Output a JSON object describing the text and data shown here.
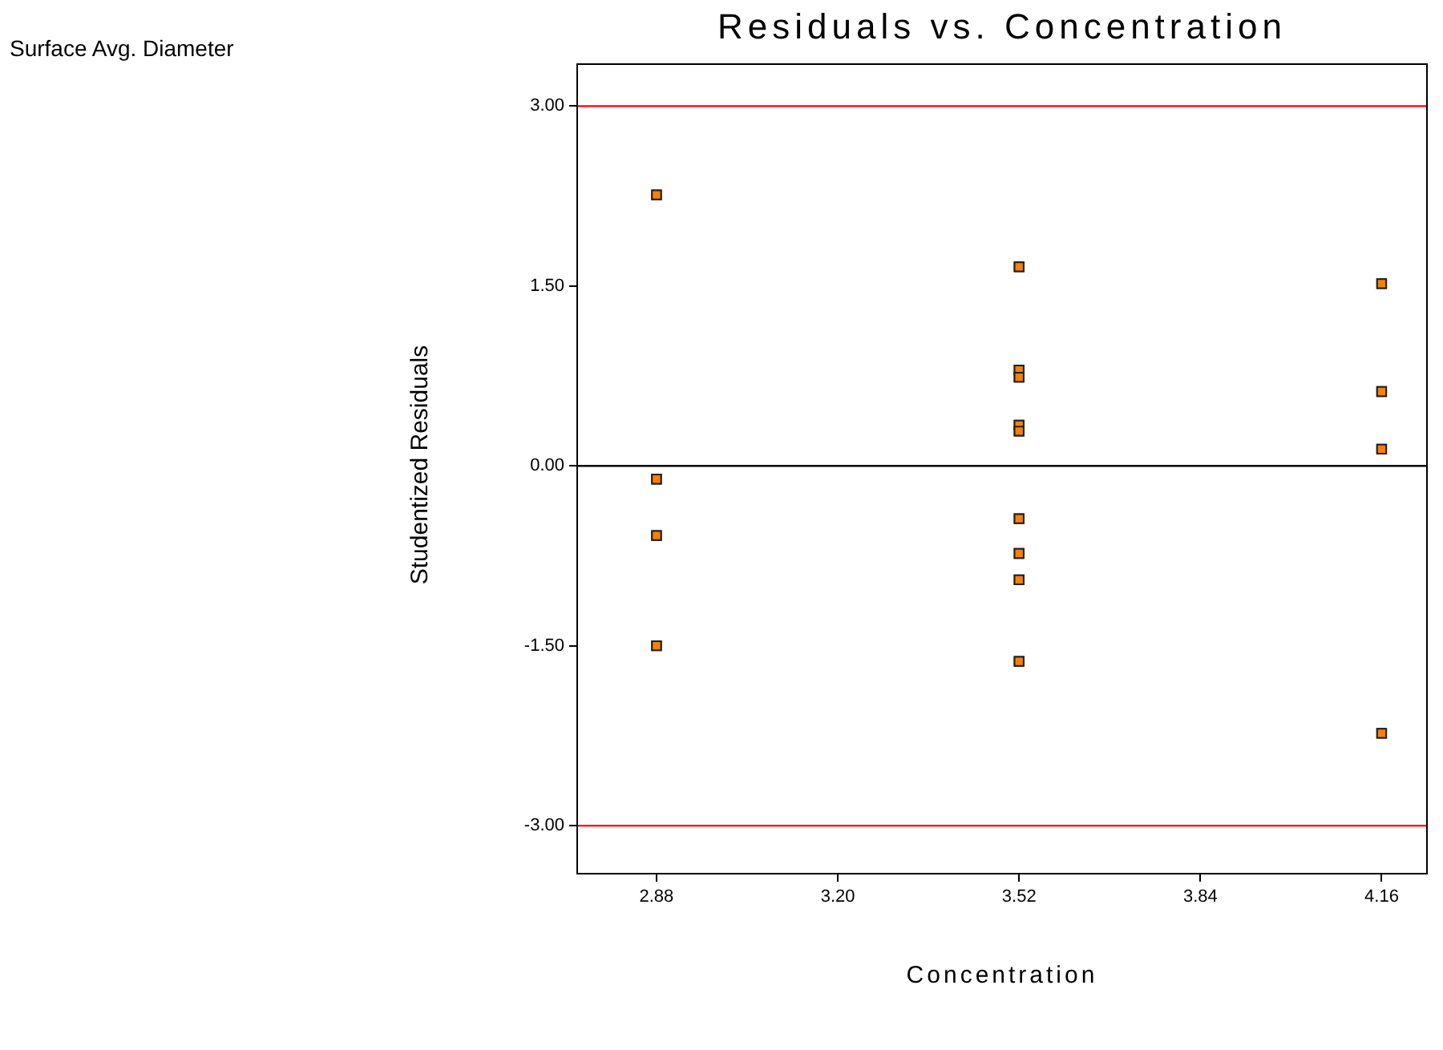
{
  "chart_data": {
    "type": "scatter",
    "title": "Residuals vs. Concentration",
    "xlabel": "Concentration",
    "ylabel": "Studentized Residuals",
    "annotations": [
      "Surface Avg. Diameter"
    ],
    "x": [
      2.88,
      2.88,
      2.88,
      2.88,
      3.52,
      3.52,
      3.52,
      3.52,
      3.52,
      3.52,
      3.52,
      3.52,
      3.52,
      4.16,
      4.16,
      4.16,
      4.16
    ],
    "series": [
      {
        "color": "#ff8000",
        "values": [
          2.26,
          -0.11,
          -0.58,
          -1.5,
          1.66,
          0.8,
          0.74,
          0.34,
          0.29,
          -0.44,
          -0.73,
          -0.95,
          -1.63,
          1.52,
          0.62,
          0.14,
          -2.23
        ]
      }
    ],
    "xlim": [
      2.74,
      4.24
    ],
    "xticks": [
      {
        "value": 2.88,
        "label": "2.88"
      },
      {
        "value": 3.2,
        "label": "3.20"
      },
      {
        "value": 3.52,
        "label": "3.52"
      },
      {
        "value": 3.84,
        "label": "3.84"
      },
      {
        "value": 4.16,
        "label": "4.16"
      }
    ],
    "ylim": [
      -3.4,
      3.35
    ],
    "yticks": [
      {
        "value": -3,
        "label": "-3.00"
      },
      {
        "value": -1.5,
        "label": "-1.50"
      },
      {
        "value": 0,
        "label": "0.00"
      },
      {
        "value": 1.5,
        "label": "1.50"
      },
      {
        "value": 3,
        "label": "3.00"
      }
    ],
    "ref_lines": [
      {
        "axis": "y",
        "value": 3,
        "color": "#ff0000"
      },
      {
        "axis": "y",
        "value": 0,
        "color": "#000000"
      },
      {
        "axis": "y",
        "value": -3,
        "color": "#ff0000"
      }
    ],
    "marker": "square",
    "grid": false,
    "legend": false
  }
}
